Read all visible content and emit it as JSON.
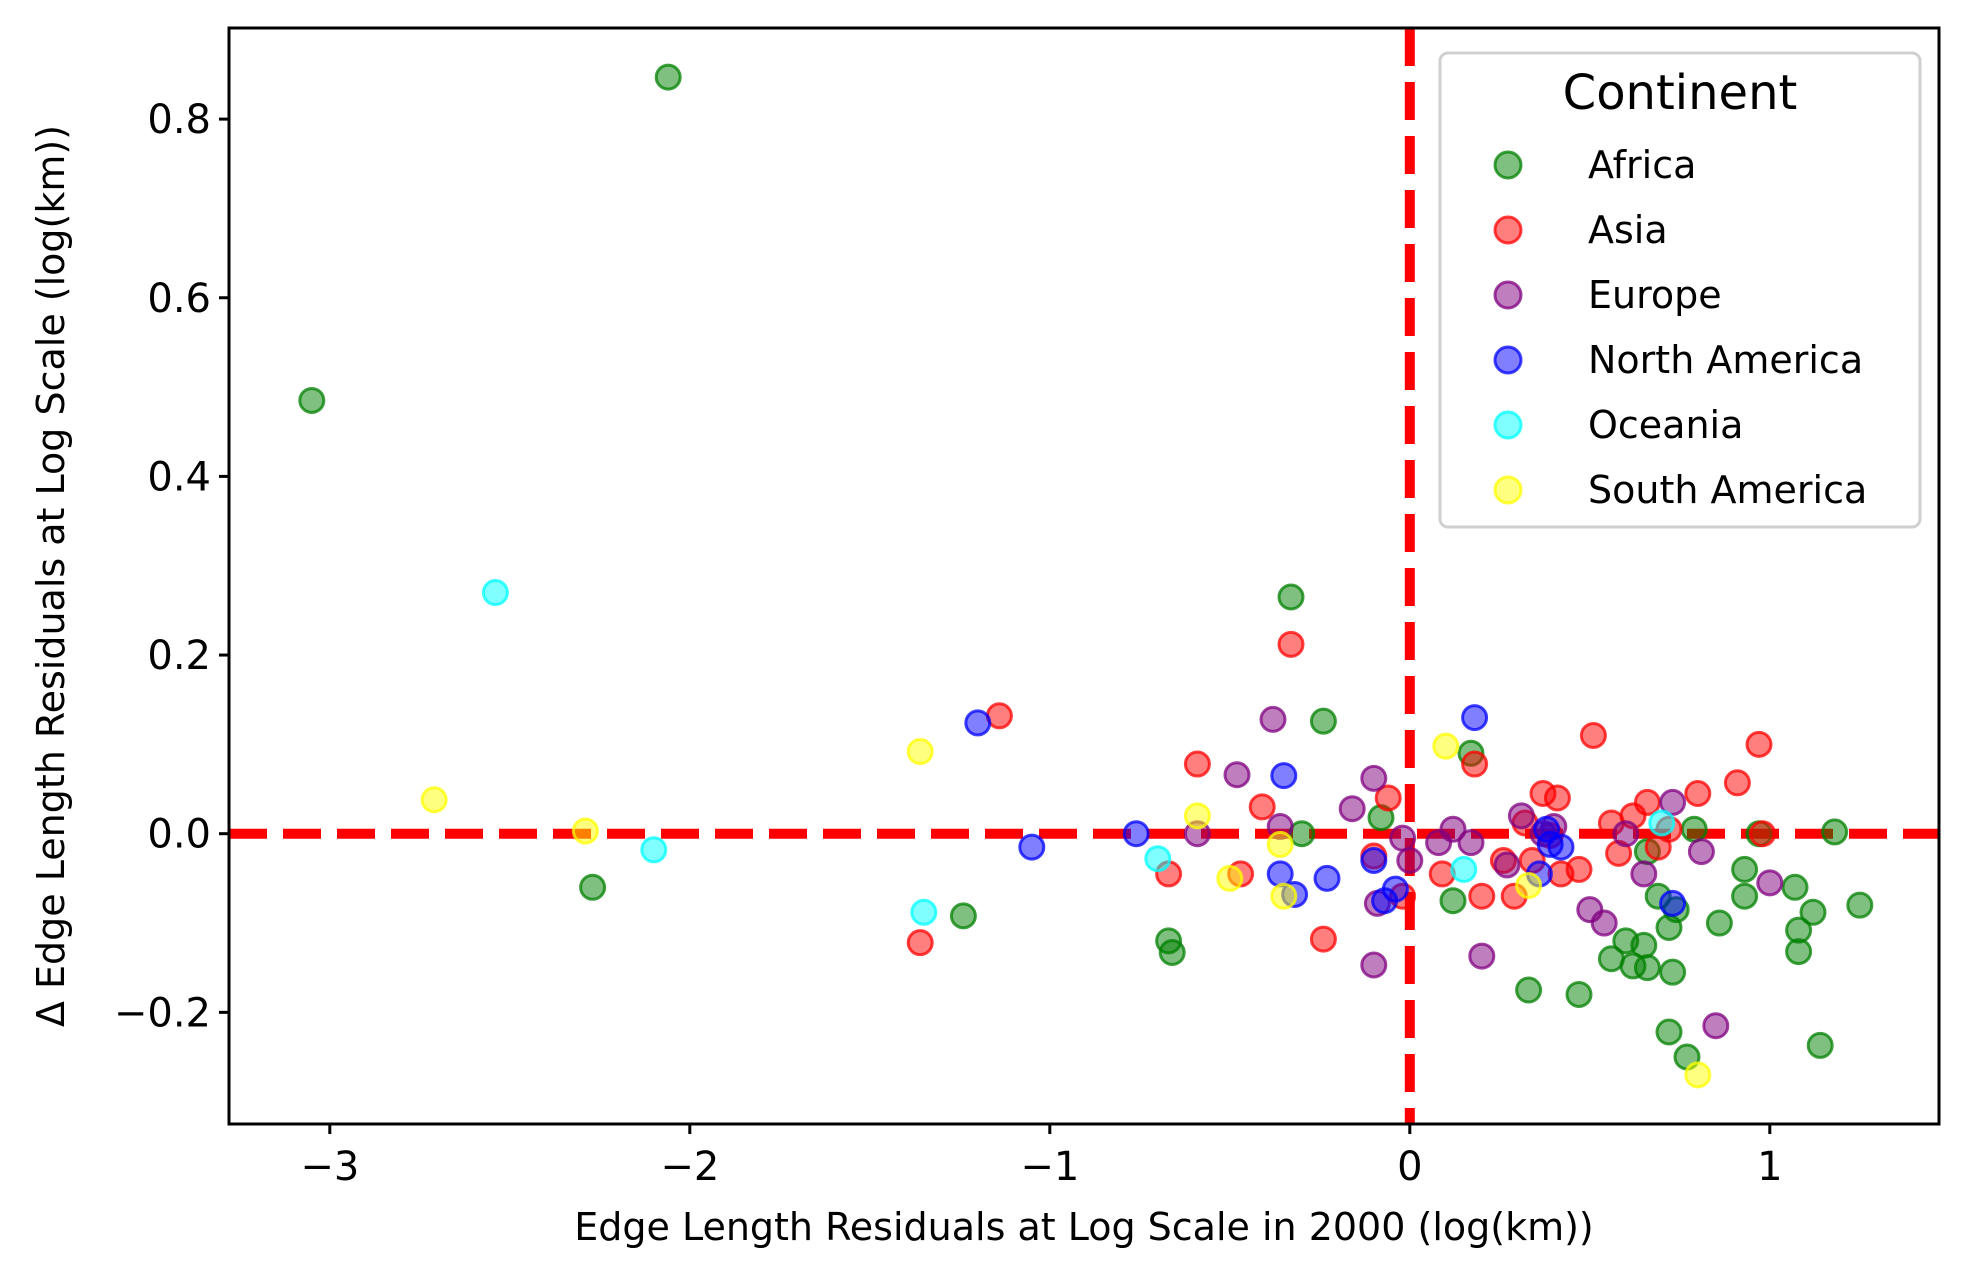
{
  "chart_data": {
    "type": "scatter",
    "title": "",
    "xlabel": "Edge Length Residuals at Log Scale in 2000 (log(km))",
    "ylabel": "Δ Edge Length Residuals at Log Scale (log(km))",
    "xlim": [
      -3.28,
      1.47
    ],
    "ylim": [
      -0.325,
      0.902
    ],
    "xticks": [
      {
        "value": -3,
        "label": "−3"
      },
      {
        "value": -2,
        "label": "−2"
      },
      {
        "value": -1,
        "label": "−1"
      },
      {
        "value": 0,
        "label": "0"
      },
      {
        "value": 1,
        "label": "1"
      }
    ],
    "yticks": [
      {
        "value": -0.2,
        "label": "−0.2"
      },
      {
        "value": 0.0,
        "label": "0.0"
      },
      {
        "value": 0.2,
        "label": "0.2"
      },
      {
        "value": 0.4,
        "label": "0.4"
      },
      {
        "value": 0.6,
        "label": "0.6"
      },
      {
        "value": 0.8,
        "label": "0.8"
      }
    ],
    "reference_lines": [
      {
        "orientation": "horizontal",
        "value": 0.0,
        "color": "#ff0000",
        "style": "dashed"
      },
      {
        "orientation": "vertical",
        "value": 0.0,
        "color": "#ff0000",
        "style": "dashed"
      }
    ],
    "legend": {
      "title": "Continent",
      "position": "top-right"
    },
    "series": [
      {
        "name": "Africa",
        "color": "#008000",
        "points": [
          [
            -2.06,
            0.847
          ],
          [
            -3.05,
            0.485
          ],
          [
            -0.33,
            0.265
          ],
          [
            -0.24,
            0.126
          ],
          [
            -2.27,
            -0.06
          ],
          [
            -1.24,
            -0.092
          ],
          [
            -0.67,
            -0.12
          ],
          [
            -0.66,
            -0.133
          ],
          [
            -0.3,
            0.0
          ],
          [
            -0.08,
            0.018
          ],
          [
            0.17,
            0.09
          ],
          [
            0.12,
            -0.075
          ],
          [
            0.33,
            -0.175
          ],
          [
            0.47,
            -0.18
          ],
          [
            0.56,
            -0.14
          ],
          [
            0.6,
            -0.12
          ],
          [
            0.62,
            -0.148
          ],
          [
            0.65,
            -0.125
          ],
          [
            0.66,
            -0.15
          ],
          [
            0.69,
            -0.07
          ],
          [
            0.72,
            -0.105
          ],
          [
            0.74,
            -0.085
          ],
          [
            0.73,
            -0.155
          ],
          [
            0.86,
            -0.1
          ],
          [
            0.93,
            -0.04
          ],
          [
            0.93,
            -0.07
          ],
          [
            0.97,
            0.0
          ],
          [
            1.07,
            -0.06
          ],
          [
            1.08,
            -0.108
          ],
          [
            1.08,
            -0.132
          ],
          [
            1.12,
            -0.088
          ],
          [
            1.18,
            0.002
          ],
          [
            1.14,
            -0.237
          ],
          [
            1.25,
            -0.08
          ],
          [
            0.72,
            -0.222
          ],
          [
            0.77,
            -0.25
          ],
          [
            0.79,
            0.005
          ],
          [
            0.66,
            -0.02
          ]
        ]
      },
      {
        "name": "Asia",
        "color": "#ff0000",
        "points": [
          [
            -1.14,
            0.132
          ],
          [
            -0.33,
            0.212
          ],
          [
            -1.36,
            -0.122
          ],
          [
            -0.59,
            0.078
          ],
          [
            -0.41,
            0.03
          ],
          [
            -0.67,
            -0.045
          ],
          [
            -0.47,
            -0.045
          ],
          [
            -0.24,
            -0.118
          ],
          [
            -0.06,
            0.04
          ],
          [
            -0.1,
            -0.025
          ],
          [
            -0.02,
            -0.07
          ],
          [
            0.18,
            0.078
          ],
          [
            0.32,
            0.012
          ],
          [
            0.34,
            -0.03
          ],
          [
            0.37,
            0.045
          ],
          [
            0.41,
            0.04
          ],
          [
            0.42,
            -0.045
          ],
          [
            0.47,
            -0.04
          ],
          [
            0.51,
            0.11
          ],
          [
            0.56,
            0.012
          ],
          [
            0.58,
            -0.022
          ],
          [
            0.62,
            0.02
          ],
          [
            0.66,
            0.035
          ],
          [
            0.69,
            -0.015
          ],
          [
            0.72,
            0.005
          ],
          [
            0.8,
            0.045
          ],
          [
            0.91,
            0.057
          ],
          [
            0.97,
            0.1
          ],
          [
            0.98,
            0.0
          ],
          [
            0.2,
            -0.07
          ],
          [
            0.29,
            -0.07
          ],
          [
            0.09,
            -0.045
          ],
          [
            0.26,
            -0.03
          ],
          [
            0.39,
            -0.002
          ]
        ]
      },
      {
        "name": "Europe",
        "color": "#800080",
        "points": [
          [
            -0.38,
            0.128
          ],
          [
            -0.48,
            0.066
          ],
          [
            -0.59,
            0.0
          ],
          [
            -0.36,
            0.008
          ],
          [
            -0.16,
            0.028
          ],
          [
            -0.1,
            0.062
          ],
          [
            -0.09,
            -0.078
          ],
          [
            -0.1,
            -0.147
          ],
          [
            0.0,
            -0.03
          ],
          [
            0.08,
            -0.01
          ],
          [
            0.12,
            0.005
          ],
          [
            0.17,
            -0.01
          ],
          [
            0.2,
            -0.137
          ],
          [
            0.27,
            -0.035
          ],
          [
            0.31,
            0.02
          ],
          [
            0.37,
            0.0
          ],
          [
            0.4,
            0.008
          ],
          [
            0.5,
            -0.085
          ],
          [
            0.54,
            -0.1
          ],
          [
            0.6,
            0.0
          ],
          [
            0.65,
            -0.045
          ],
          [
            0.73,
            0.035
          ],
          [
            0.81,
            -0.02
          ],
          [
            0.85,
            -0.215
          ],
          [
            1.0,
            -0.055
          ],
          [
            -0.02,
            -0.005
          ]
        ]
      },
      {
        "name": "North America",
        "color": "#0000ff",
        "points": [
          [
            -1.2,
            0.124
          ],
          [
            -1.05,
            -0.015
          ],
          [
            -0.76,
            0.0
          ],
          [
            -0.35,
            0.065
          ],
          [
            -0.36,
            -0.045
          ],
          [
            -0.32,
            -0.068
          ],
          [
            -0.23,
            -0.05
          ],
          [
            -0.1,
            -0.03
          ],
          [
            -0.07,
            -0.075
          ],
          [
            0.18,
            0.13
          ],
          [
            0.36,
            -0.045
          ],
          [
            0.39,
            -0.012
          ],
          [
            0.42,
            -0.015
          ],
          [
            0.73,
            -0.078
          ],
          [
            0.38,
            0.005
          ],
          [
            -0.04,
            -0.062
          ]
        ]
      },
      {
        "name": "Oceania",
        "color": "#00ffff",
        "points": [
          [
            -2.54,
            0.27
          ],
          [
            -2.1,
            -0.018
          ],
          [
            -1.35,
            -0.088
          ],
          [
            -0.7,
            -0.028
          ],
          [
            0.15,
            -0.04
          ],
          [
            0.7,
            0.012
          ]
        ]
      },
      {
        "name": "South America",
        "color": "#ffff00",
        "points": [
          [
            -2.71,
            0.038
          ],
          [
            -2.29,
            0.003
          ],
          [
            -1.36,
            0.092
          ],
          [
            -0.59,
            0.02
          ],
          [
            -0.5,
            -0.05
          ],
          [
            -0.36,
            -0.012
          ],
          [
            -0.35,
            -0.07
          ],
          [
            0.1,
            0.098
          ],
          [
            0.33,
            -0.058
          ],
          [
            0.8,
            -0.27
          ]
        ]
      }
    ]
  }
}
